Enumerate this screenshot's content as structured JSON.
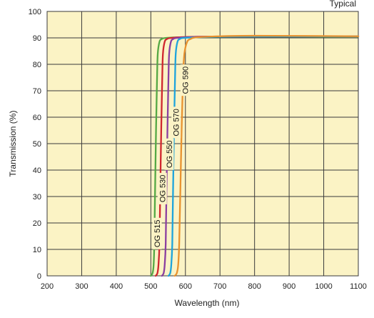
{
  "note": "Typical",
  "colors": {
    "plot_background": "#fbf3c5",
    "grid": "#3a3a3a"
  },
  "chart_data": {
    "type": "line",
    "xlabel": "Wavelength (nm)",
    "ylabel": "Transmission (%)",
    "xlim": [
      200,
      1100
    ],
    "ylim": [
      0,
      100
    ],
    "xticks": [
      200,
      300,
      400,
      500,
      600,
      700,
      800,
      900,
      1000,
      1100
    ],
    "yticks": [
      0,
      10,
      20,
      30,
      40,
      50,
      60,
      70,
      80,
      90,
      100
    ],
    "grid": true,
    "series": [
      {
        "name": "OG 515",
        "color": "#55a845",
        "label_at": [
          518,
          16
        ],
        "x": [
          500,
          505,
          508,
          510,
          512,
          515,
          518,
          520,
          525,
          532,
          545,
          600,
          700,
          1100
        ],
        "y": [
          0,
          1,
          4,
          12,
          30,
          55,
          75,
          84,
          88.5,
          89.6,
          90,
          90.3,
          90.4,
          90.5
        ]
      },
      {
        "name": "OG 530",
        "color": "#d0262e",
        "label_at": [
          533,
          33
        ],
        "x": [
          514,
          519,
          522,
          525,
          527,
          530,
          533,
          535,
          540,
          547,
          560,
          620,
          700,
          1100
        ],
        "y": [
          0,
          1,
          4,
          12,
          30,
          55,
          75,
          84,
          88.5,
          89.6,
          90,
          90.4,
          90.5,
          90.6
        ]
      },
      {
        "name": "OG 550",
        "color": "#8b3fa0",
        "label_at": [
          553,
          46
        ],
        "x": [
          532,
          537,
          540,
          543,
          545,
          548,
          551,
          553,
          558,
          565,
          578,
          640,
          720,
          1100
        ],
        "y": [
          0,
          1,
          4,
          12,
          30,
          55,
          75,
          84,
          88.5,
          89.6,
          90,
          90.4,
          90.5,
          90.6
        ]
      },
      {
        "name": "OG 570",
        "color": "#1ea4dc",
        "label_at": [
          573,
          58
        ],
        "x": [
          551,
          556,
          559,
          562,
          564,
          567,
          570,
          572,
          577,
          584,
          597,
          660,
          740,
          1100
        ],
        "y": [
          0,
          1,
          4,
          12,
          30,
          55,
          75,
          84,
          88.5,
          89.6,
          90,
          90.3,
          90.5,
          90.6
        ]
      },
      {
        "name": "OG 590",
        "color": "#e8922f",
        "label_at": [
          599,
          74
        ],
        "x": [
          569,
          575,
          579,
          582,
          585,
          589,
          593,
          597,
          605,
          615,
          632,
          700,
          800,
          1100
        ],
        "y": [
          0,
          1,
          4,
          12,
          30,
          55,
          75,
          84,
          88.5,
          89.6,
          90.2,
          90.6,
          90.8,
          90.6
        ]
      }
    ]
  }
}
